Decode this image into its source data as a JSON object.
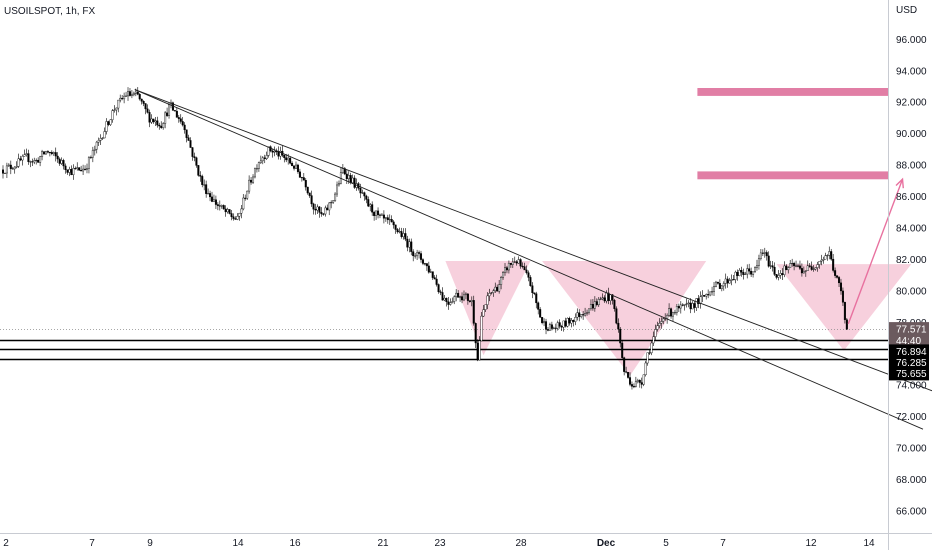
{
  "header": {
    "symbol_title": "USOILSPOT, 1h, FX"
  },
  "chart_data": {
    "type": "candlestick",
    "currency_label": "USD",
    "title": "USOILSPOT, 1h, FX",
    "ylim": [
      64.6,
      98.5
    ],
    "y_ticks": [
      66,
      68,
      70,
      72,
      74,
      76,
      78,
      80,
      82,
      84,
      86,
      88,
      90,
      92,
      94,
      96
    ],
    "y_tick_labels": [
      "66.000",
      "68.000",
      "70.000",
      "72.000",
      "74.000",
      "76.000",
      "78.000",
      "80.000",
      "82.000",
      "84.000",
      "86.000",
      "88.000",
      "90.000",
      "92.000",
      "94.000",
      "96.000"
    ],
    "x_tick_labels": [
      "2",
      "7",
      "9",
      "14",
      "16",
      "21",
      "23",
      "28",
      "Dec",
      "5",
      "7",
      "12",
      "14"
    ],
    "price_anchors": [
      [
        0,
        87.7
      ],
      [
        0.4,
        88.0
      ],
      [
        0.8,
        88.5
      ],
      [
        1.1,
        88.2
      ],
      [
        1.5,
        88.9
      ],
      [
        1.8,
        88.5
      ],
      [
        2.3,
        87.6
      ],
      [
        2.8,
        87.8
      ],
      [
        3.3,
        89.6
      ],
      [
        3.8,
        91.6
      ],
      [
        4.2,
        92.5
      ],
      [
        4.6,
        92.4
      ],
      [
        5.0,
        91.0
      ],
      [
        5.4,
        90.6
      ],
      [
        5.7,
        91.8
      ],
      [
        6.0,
        91.0
      ],
      [
        6.2,
        90.4
      ],
      [
        6.5,
        88.5
      ],
      [
        6.8,
        86.8
      ],
      [
        7.2,
        85.7
      ],
      [
        7.6,
        85.0
      ],
      [
        8.0,
        84.5
      ],
      [
        8.3,
        86.3
      ],
      [
        8.7,
        88.2
      ],
      [
        9.1,
        89.0
      ],
      [
        9.5,
        88.6
      ],
      [
        9.9,
        88.0
      ],
      [
        10.3,
        87.0
      ],
      [
        10.6,
        85.4
      ],
      [
        10.9,
        84.7
      ],
      [
        11.3,
        86.0
      ],
      [
        11.6,
        87.7
      ],
      [
        12.0,
        86.8
      ],
      [
        12.4,
        85.6
      ],
      [
        12.8,
        84.7
      ],
      [
        13.2,
        84.3
      ],
      [
        13.6,
        83.6
      ],
      [
        14.0,
        82.5
      ],
      [
        14.3,
        82.0
      ],
      [
        14.7,
        80.9
      ],
      [
        15.0,
        79.6
      ],
      [
        15.2,
        79.3
      ],
      [
        15.5,
        79.8
      ],
      [
        15.8,
        79.6
      ],
      [
        16.0,
        79.3
      ],
      [
        16.1,
        77.6
      ],
      [
        16.2,
        75.6
      ],
      [
        16.35,
        78.5
      ],
      [
        16.6,
        79.8
      ],
      [
        16.9,
        80.3
      ],
      [
        17.2,
        81.5
      ],
      [
        17.5,
        82.0
      ],
      [
        17.8,
        81.2
      ],
      [
        18.0,
        80.4
      ],
      [
        18.2,
        79.2
      ],
      [
        18.4,
        78.0
      ],
      [
        18.7,
        77.6
      ],
      [
        19.1,
        77.8
      ],
      [
        19.5,
        78.3
      ],
      [
        19.9,
        78.8
      ],
      [
        20.3,
        79.3
      ],
      [
        20.6,
        79.7
      ],
      [
        20.8,
        79.4
      ],
      [
        21.0,
        77.5
      ],
      [
        21.2,
        74.9
      ],
      [
        21.5,
        74.0
      ],
      [
        21.8,
        74.3
      ],
      [
        22.0,
        76.0
      ],
      [
        22.3,
        77.5
      ],
      [
        22.6,
        78.5
      ],
      [
        23.0,
        78.8
      ],
      [
        23.4,
        79.0
      ],
      [
        23.8,
        79.4
      ],
      [
        24.2,
        80.2
      ],
      [
        24.6,
        80.5
      ],
      [
        25.0,
        81.0
      ],
      [
        25.4,
        81.2
      ],
      [
        25.7,
        81.3
      ],
      [
        25.9,
        82.6
      ],
      [
        26.1,
        81.9
      ],
      [
        26.4,
        81.0
      ],
      [
        26.7,
        81.4
      ],
      [
        27.0,
        81.6
      ],
      [
        27.3,
        81.3
      ],
      [
        27.6,
        81.5
      ],
      [
        27.9,
        82.0
      ],
      [
        28.2,
        82.4
      ],
      [
        28.4,
        81.0
      ],
      [
        28.6,
        80.0
      ],
      [
        28.75,
        78.0
      ],
      [
        28.85,
        77.6
      ]
    ],
    "horizontal_levels": [
      {
        "label": "77.571",
        "value": 77.571,
        "style": "dotted"
      },
      {
        "label": "76.894",
        "value": 76.894,
        "style": "solid"
      },
      {
        "label": "76.285",
        "value": 76.285,
        "style": "solid"
      },
      {
        "label": "75.655",
        "value": 75.655,
        "style": "solid"
      }
    ],
    "price_badges": [
      {
        "label": "77.571",
        "value": 77.571,
        "color": "#6b5a5e"
      },
      {
        "label": "44:40",
        "value": 76.85,
        "color": "#6b5a5e"
      },
      {
        "label": "76.894",
        "value": 76.15,
        "color": "#000000"
      },
      {
        "label": "76.285",
        "value": 75.45,
        "color": "#000000"
      },
      {
        "label": "75.655",
        "value": 74.75,
        "color": "#000000"
      }
    ],
    "target_zones": [
      {
        "from": 92.4,
        "to": 92.9,
        "x_start_day": 23.7,
        "color": "#e17ea5"
      },
      {
        "from": 87.1,
        "to": 87.6,
        "x_start_day": 23.7,
        "color": "#e17ea5"
      }
    ],
    "trendlines": [
      {
        "from": [
          4.5,
          92.8
        ],
        "to": [
          32.2,
          73.3
        ]
      },
      {
        "from": [
          4.5,
          92.8
        ],
        "to": [
          31.4,
          71.2
        ]
      }
    ],
    "pattern_triangles": [
      {
        "points": [
          [
            15.1,
            81.9
          ],
          [
            18.0,
            81.9
          ],
          [
            16.4,
            75.9
          ]
        ]
      },
      {
        "points": [
          [
            18.4,
            81.9
          ],
          [
            24.0,
            81.9
          ],
          [
            21.4,
            74.6
          ]
        ]
      },
      {
        "points": [
          [
            26.4,
            81.7
          ],
          [
            31.0,
            81.7
          ],
          [
            28.7,
            76.2
          ]
        ]
      }
    ],
    "projection_arrow": {
      "from": [
        28.85,
        77.9
      ],
      "to": [
        30.7,
        87.1
      ],
      "color": "#e8719f"
    },
    "colors": {
      "candle": "#000000",
      "zone": "#e17ea5",
      "triangle_fill": "#f4c0d2",
      "arrow": "#e8719f"
    }
  }
}
